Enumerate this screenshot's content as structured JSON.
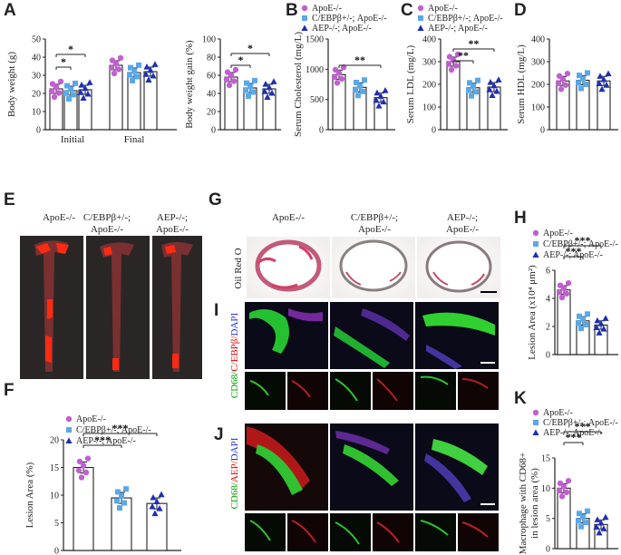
{
  "colors": {
    "apoe": "#c060d0",
    "cebpb": "#5aa8e8",
    "aep": "#1f2fb0",
    "axis": "#222222"
  },
  "legend": [
    "ApoE-/-",
    "C/EBPβ+/-; ApoE-/-",
    "AEP-/-; ApoE-/-"
  ],
  "panels": {
    "A": "A",
    "B": "B",
    "C": "C",
    "D": "D",
    "E": "E",
    "F": "F",
    "G": "G",
    "H": "H",
    "I": "I",
    "J": "J",
    "K": "K"
  },
  "images": {
    "E_headers": [
      [
        "ApoE-/-",
        ""
      ],
      [
        "C/EBPβ+/-;",
        "ApoE-/-"
      ],
      [
        "AEP-/-;",
        "ApoE-/-"
      ]
    ],
    "G_headers": [
      [
        "ApoE-/-",
        ""
      ],
      [
        "C/EBPβ+/-;",
        "ApoE-/-"
      ],
      [
        "AEP-/-;",
        "ApoE-/-"
      ]
    ],
    "G_stain": "Oil Red O",
    "I_stain": [
      "CD68/",
      "C/EBPβ/",
      "DAPI"
    ],
    "J_stain": [
      "CD68/",
      "AEP/",
      "DAPI"
    ]
  },
  "chart_data": [
    {
      "id": "A1",
      "type": "bar",
      "ylabel": "Body weight (g)",
      "ylim": [
        0,
        50
      ],
      "yticks": [
        0,
        10,
        20,
        30,
        40,
        50
      ],
      "groups": [
        "Initial",
        "Final"
      ],
      "series": [
        {
          "name": "ApoE-/-",
          "values": [
            22.5,
            35.5
          ]
        },
        {
          "name": "C/EBPβ+/-; ApoE-/-",
          "values": [
            21.5,
            31.5
          ]
        },
        {
          "name": "AEP-/-; ApoE-/-",
          "values": [
            22,
            32
          ]
        }
      ],
      "sig": [
        "*",
        "*"
      ]
    },
    {
      "id": "A2",
      "type": "bar",
      "ylabel": "Body weight gain (%)",
      "ylim": [
        0,
        100
      ],
      "yticks": [
        0,
        20,
        40,
        60,
        80,
        100
      ],
      "series": [
        {
          "name": "ApoE-/-",
          "values": [
            58
          ]
        },
        {
          "name": "C/EBPβ+/-; ApoE-/-",
          "values": [
            46
          ]
        },
        {
          "name": "AEP-/-; ApoE-/-",
          "values": [
            45
          ]
        }
      ],
      "sig": [
        "*",
        "*"
      ]
    },
    {
      "id": "B",
      "type": "bar",
      "ylabel": "Serum Cholesterol (mg/L)",
      "ylim": [
        0,
        1500
      ],
      "yticks": [
        0,
        500,
        1000,
        1500
      ],
      "series": [
        {
          "name": "ApoE-/-",
          "values": [
            910
          ]
        },
        {
          "name": "C/EBPβ+/-; ApoE-/-",
          "values": [
            700
          ]
        },
        {
          "name": "AEP-/-; ApoE-/-",
          "values": [
            530
          ]
        }
      ],
      "sig": [
        "**"
      ]
    },
    {
      "id": "C",
      "type": "bar",
      "ylabel": "Serum LDL (mg/L)",
      "ylim": [
        0,
        400
      ],
      "yticks": [
        0,
        100,
        200,
        300,
        400
      ],
      "series": [
        {
          "name": "ApoE-/-",
          "values": [
            300
          ]
        },
        {
          "name": "C/EBPβ+/-; ApoE-/-",
          "values": [
            185
          ]
        },
        {
          "name": "AEP-/-; ApoE-/-",
          "values": [
            188
          ]
        }
      ],
      "sig": [
        "**",
        "**"
      ]
    },
    {
      "id": "D",
      "type": "bar",
      "ylabel": "Serum HDL (mg/L)",
      "ylim": [
        0,
        400
      ],
      "yticks": [
        0,
        100,
        200,
        300,
        400
      ],
      "series": [
        {
          "name": "ApoE-/-",
          "values": [
            215
          ]
        },
        {
          "name": "C/EBPβ+/-; ApoE-/-",
          "values": [
            218
          ]
        },
        {
          "name": "AEP-/-; ApoE-/-",
          "values": [
            215
          ]
        }
      ],
      "sig": []
    },
    {
      "id": "F",
      "type": "bar",
      "ylabel": "Lesion Area (%)",
      "ylim": [
        0,
        20
      ],
      "yticks": [
        0,
        5,
        10,
        15,
        20
      ],
      "series": [
        {
          "name": "ApoE-/-",
          "values": [
            15
          ]
        },
        {
          "name": "C/EBPβ+/-; ApoE-/-",
          "values": [
            9.5
          ]
        },
        {
          "name": "AEP-/-; ApoE-/-",
          "values": [
            8.5
          ]
        }
      ],
      "sig": [
        "***",
        "***"
      ]
    },
    {
      "id": "H",
      "type": "bar",
      "ylabel": "Lesion Area (x10⁴ μm²)",
      "ylim": [
        0,
        6
      ],
      "yticks": [
        0,
        2,
        4,
        6
      ],
      "series": [
        {
          "name": "ApoE-/-",
          "values": [
            4.6
          ]
        },
        {
          "name": "C/EBPβ+/-; ApoE-/-",
          "values": [
            2.4
          ]
        },
        {
          "name": "AEP-/-; ApoE-/-",
          "values": [
            2.1
          ]
        }
      ],
      "sig": [
        "***",
        "***"
      ]
    },
    {
      "id": "K",
      "type": "bar",
      "ylabel": "Macrophage with CD68+ in lesion area (%)",
      "ylim": [
        0,
        15
      ],
      "yticks": [
        0,
        5,
        10,
        15
      ],
      "series": [
        {
          "name": "ApoE-/-",
          "values": [
            10
          ]
        },
        {
          "name": "C/EBPβ+/-; ApoE-/-",
          "values": [
            5
          ]
        },
        {
          "name": "AEP-/-; ApoE-/-",
          "values": [
            4
          ]
        }
      ],
      "sig": [
        "***",
        "***"
      ]
    }
  ]
}
